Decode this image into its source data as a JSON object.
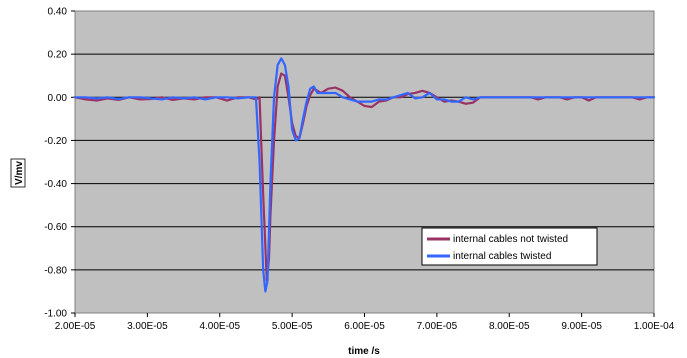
{
  "chart_data": {
    "type": "line",
    "xlabel": "time /s",
    "ylabel": "V/mv",
    "xlim": [
      2e-05,
      0.0001
    ],
    "ylim": [
      -1.0,
      0.4
    ],
    "x_tick_labels": [
      "2.00E-05",
      "3.00E-05",
      "4.00E-05",
      "5.00E-05",
      "6.00E-05",
      "7.00E-05",
      "8.00E-05",
      "9.00E-05",
      "1.00E-04"
    ],
    "y_tick_labels": [
      "0.40",
      "0.20",
      "0.00",
      "-0.20",
      "-0.40",
      "-0.60",
      "-0.80",
      "-1.00"
    ],
    "grid": "horizontal",
    "legend": "lower-right",
    "plot_background": "#c0c0c0",
    "series": [
      {
        "name": "internal cables not twisted",
        "color": "#993366",
        "x": [
          2e-05,
          2.15e-05,
          2.3e-05,
          2.45e-05,
          2.6e-05,
          2.75e-05,
          2.9e-05,
          3.05e-05,
          3.2e-05,
          3.35e-05,
          3.5e-05,
          3.65e-05,
          3.8e-05,
          3.95e-05,
          4.1e-05,
          4.25e-05,
          4.4e-05,
          4.5e-05,
          4.55e-05,
          4.6e-05,
          4.65e-05,
          4.68e-05,
          4.7e-05,
          4.75e-05,
          4.8e-05,
          4.85e-05,
          4.9e-05,
          4.95e-05,
          5e-05,
          5.05e-05,
          5.1e-05,
          5.15e-05,
          5.2e-05,
          5.25e-05,
          5.3e-05,
          5.35e-05,
          5.4e-05,
          5.5e-05,
          5.6e-05,
          5.7e-05,
          5.8e-05,
          5.9e-05,
          6e-05,
          6.1e-05,
          6.2e-05,
          6.3e-05,
          6.4e-05,
          6.5e-05,
          6.6e-05,
          6.7e-05,
          6.8e-05,
          6.9e-05,
          7e-05,
          7.1e-05,
          7.2e-05,
          7.3e-05,
          7.4e-05,
          7.5e-05,
          7.6e-05,
          7.7e-05,
          7.8e-05,
          7.9e-05,
          8e-05,
          8.1e-05,
          8.2e-05,
          8.3e-05,
          8.4e-05,
          8.5e-05,
          8.6e-05,
          8.7e-05,
          8.8e-05,
          8.9e-05,
          9e-05,
          9.1e-05,
          9.2e-05,
          9.3e-05,
          9.4e-05,
          9.5e-05,
          9.6e-05,
          9.7e-05,
          9.8e-05,
          9.9e-05,
          0.0001
        ],
        "y": [
          0.0,
          -0.01,
          -0.015,
          -0.005,
          -0.012,
          0.0,
          -0.01,
          -0.008,
          0.0,
          -0.012,
          -0.005,
          -0.01,
          0.0,
          0.0,
          -0.015,
          0.0,
          0.0,
          -0.01,
          0.0,
          -0.45,
          -0.85,
          -0.75,
          -0.55,
          -0.2,
          0.05,
          0.11,
          0.1,
          0.0,
          -0.12,
          -0.18,
          -0.19,
          -0.12,
          -0.04,
          0.01,
          0.04,
          0.03,
          0.02,
          0.04,
          0.045,
          0.03,
          0.0,
          -0.02,
          -0.04,
          -0.045,
          -0.02,
          -0.015,
          0.0,
          0.0,
          0.015,
          0.02,
          0.03,
          0.02,
          0.0,
          -0.02,
          -0.015,
          -0.02,
          -0.03,
          -0.025,
          0.0,
          0.0,
          0.0,
          0.0,
          0.0,
          0.0,
          0.0,
          0.0,
          -0.01,
          0.0,
          0.0,
          0.0,
          -0.01,
          0.0,
          0.0,
          -0.015,
          0.0,
          0.0,
          0.0,
          0.0,
          0.0,
          0.0,
          -0.01,
          0.0,
          0.0
        ]
      },
      {
        "name": "internal cables twisted",
        "color": "#3366ff",
        "x": [
          2e-05,
          2.15e-05,
          2.3e-05,
          2.45e-05,
          2.6e-05,
          2.75e-05,
          2.9e-05,
          3.05e-05,
          3.2e-05,
          3.35e-05,
          3.5e-05,
          3.65e-05,
          3.8e-05,
          3.95e-05,
          4.1e-05,
          4.25e-05,
          4.4e-05,
          4.5e-05,
          4.55e-05,
          4.6e-05,
          4.63e-05,
          4.66e-05,
          4.7e-05,
          4.75e-05,
          4.8e-05,
          4.85e-05,
          4.9e-05,
          4.95e-05,
          5e-05,
          5.05e-05,
          5.1e-05,
          5.15e-05,
          5.2e-05,
          5.25e-05,
          5.3e-05,
          5.35e-05,
          5.4e-05,
          5.5e-05,
          5.6e-05,
          5.7e-05,
          5.8e-05,
          5.9e-05,
          6e-05,
          6.1e-05,
          6.2e-05,
          6.3e-05,
          6.4e-05,
          6.5e-05,
          6.6e-05,
          6.7e-05,
          6.8e-05,
          6.9e-05,
          7e-05,
          7.1e-05,
          7.2e-05,
          7.3e-05,
          7.4e-05,
          7.5e-05,
          7.6e-05,
          7.7e-05,
          7.8e-05,
          7.9e-05,
          8e-05,
          8.1e-05,
          8.2e-05,
          8.3e-05,
          8.4e-05,
          8.5e-05,
          8.6e-05,
          8.7e-05,
          8.8e-05,
          8.9e-05,
          9e-05,
          9.1e-05,
          9.2e-05,
          9.3e-05,
          9.4e-05,
          9.5e-05,
          9.6e-05,
          9.7e-05,
          9.8e-05,
          9.9e-05,
          0.0001
        ],
        "y": [
          0.0,
          0.0,
          -0.005,
          0.0,
          -0.008,
          0.0,
          0.0,
          -0.005,
          -0.01,
          0.0,
          -0.005,
          0.0,
          -0.01,
          0.0,
          0.0,
          -0.005,
          0.0,
          0.0,
          -0.3,
          -0.8,
          -0.9,
          -0.85,
          -0.4,
          0.0,
          0.15,
          0.18,
          0.15,
          0.05,
          -0.15,
          -0.2,
          -0.19,
          -0.1,
          -0.02,
          0.04,
          0.05,
          0.02,
          0.02,
          0.02,
          0.02,
          0.0,
          -0.01,
          -0.02,
          -0.02,
          -0.02,
          -0.01,
          -0.01,
          0.0,
          0.01,
          0.02,
          -0.005,
          0.0,
          0.02,
          -0.01,
          -0.01,
          -0.02,
          -0.02,
          0.0,
          -0.01,
          0.0,
          0.0,
          0.0,
          0.0,
          0.0,
          0.0,
          0.0,
          0.0,
          0.0,
          0.0,
          0.0,
          0.0,
          0.0,
          0.0,
          0.0,
          0.0,
          0.0,
          0.0,
          0.0,
          0.0,
          0.0,
          0.0,
          0.0,
          0.0,
          0.0
        ]
      }
    ]
  }
}
